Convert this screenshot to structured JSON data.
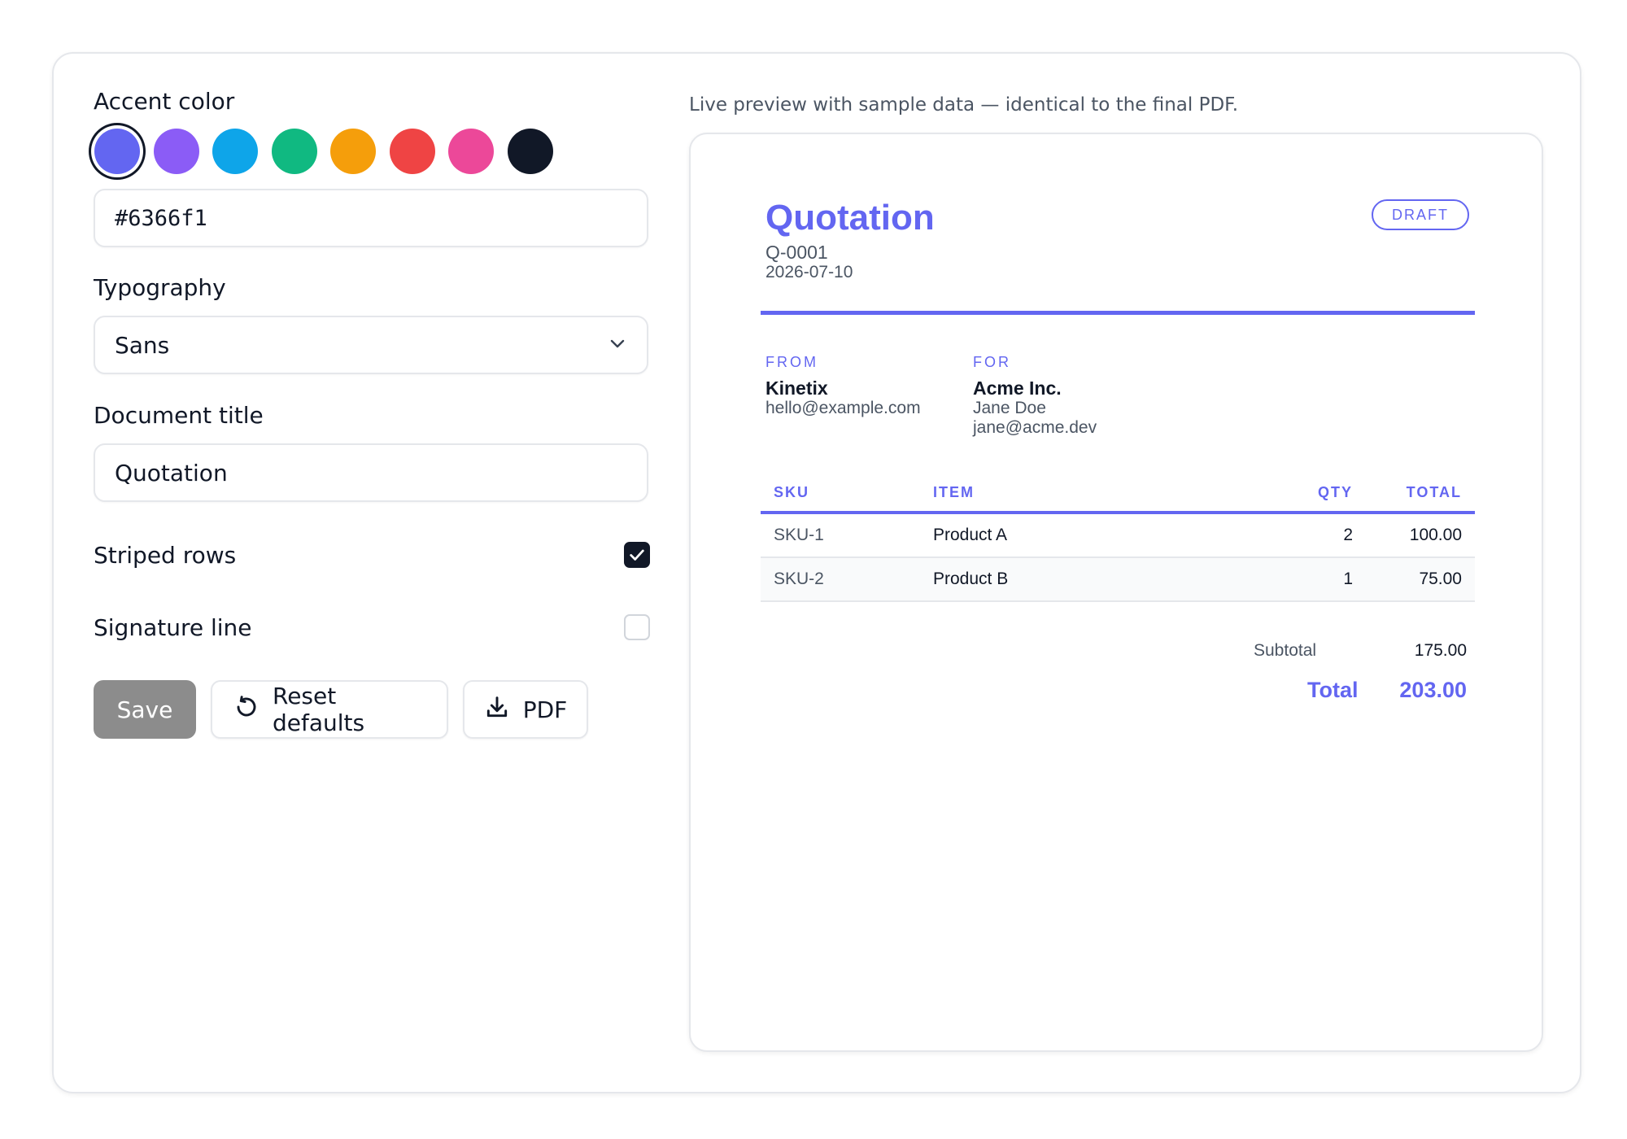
{
  "settings": {
    "accent": {
      "label": "Accent color",
      "swatches": [
        "#6366f1",
        "#8b5cf6",
        "#0ea5e9",
        "#10b981",
        "#f59e0b",
        "#ef4444",
        "#ec4899",
        "#111827"
      ],
      "selected_index": 0,
      "hex_value": "#6366f1"
    },
    "typography": {
      "label": "Typography",
      "value": "Sans"
    },
    "document_title": {
      "label": "Document title",
      "value": "Quotation"
    },
    "striped_rows": {
      "label": "Striped rows",
      "checked": true
    },
    "signature_line": {
      "label": "Signature line",
      "checked": false
    },
    "buttons": {
      "save": "Save",
      "reset": "Reset defaults",
      "pdf": "PDF"
    }
  },
  "preview": {
    "caption": "Live preview with sample data — identical to the final PDF.",
    "accent_color": "#6366f1",
    "title": "Quotation",
    "number": "Q-0001",
    "date": "2026-07-10",
    "badge": "DRAFT",
    "from": {
      "label": "FROM",
      "name": "Kinetix",
      "lines": [
        "hello@example.com"
      ]
    },
    "for": {
      "label": "FOR",
      "name": "Acme Inc.",
      "lines": [
        "Jane Doe",
        "jane@acme.dev"
      ]
    },
    "table": {
      "headers": {
        "sku": "SKU",
        "item": "ITEM",
        "qty": "QTY",
        "total": "TOTAL"
      },
      "rows": [
        {
          "sku": "SKU-1",
          "item": "Product A",
          "qty": "2",
          "total": "100.00"
        },
        {
          "sku": "SKU-2",
          "item": "Product B",
          "qty": "1",
          "total": "75.00"
        }
      ]
    },
    "subtotal_label": "Subtotal",
    "subtotal_value": "175.00",
    "total_label": "Total",
    "total_value": "203.00"
  }
}
